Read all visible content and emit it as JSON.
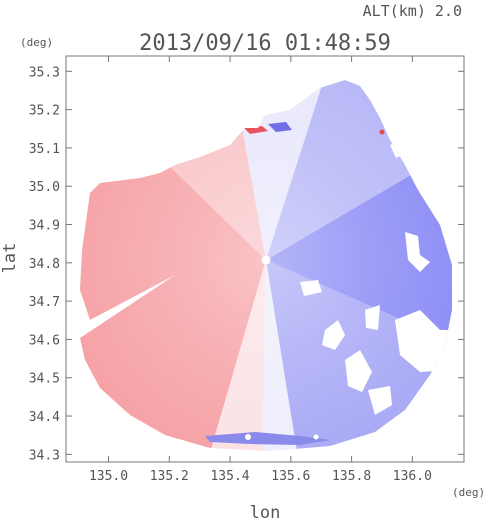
{
  "header": {
    "altitude_label": "ALT(km) 2.0",
    "timestamp": "2013/09/16 01:48:59",
    "y_unit": "(deg)",
    "x_unit": "(deg)"
  },
  "chart_data": {
    "type": "heatmap",
    "title": "2013/09/16 01:48:59",
    "xlabel": "lon",
    "ylabel": "lat",
    "xlim": [
      134.86,
      136.17
    ],
    "ylim": [
      34.28,
      35.34
    ],
    "x_ticks": [
      135.0,
      135.2,
      135.4,
      135.6,
      135.8,
      136.0
    ],
    "x_tick_labels": [
      "135.0",
      "135.2",
      "135.4",
      "135.6",
      "135.8",
      "136.0"
    ],
    "y_ticks": [
      34.3,
      34.4,
      34.5,
      34.6,
      34.7,
      34.8,
      34.9,
      35.0,
      35.1,
      35.2,
      35.3
    ],
    "y_tick_labels": [
      "34.3",
      "34.4",
      "34.5",
      "34.6",
      "34.7",
      "34.8",
      "34.9",
      "35.0",
      "35.1",
      "35.2",
      "35.3"
    ],
    "grid": false,
    "radar_center": {
      "lon": 135.53,
      "lat": 34.8
    },
    "colors": {
      "positive": "#f7a0a4",
      "negative": "#8c8cf5",
      "neutral": "#f4f4ff",
      "axis": "#777777",
      "text": "#555555"
    }
  }
}
